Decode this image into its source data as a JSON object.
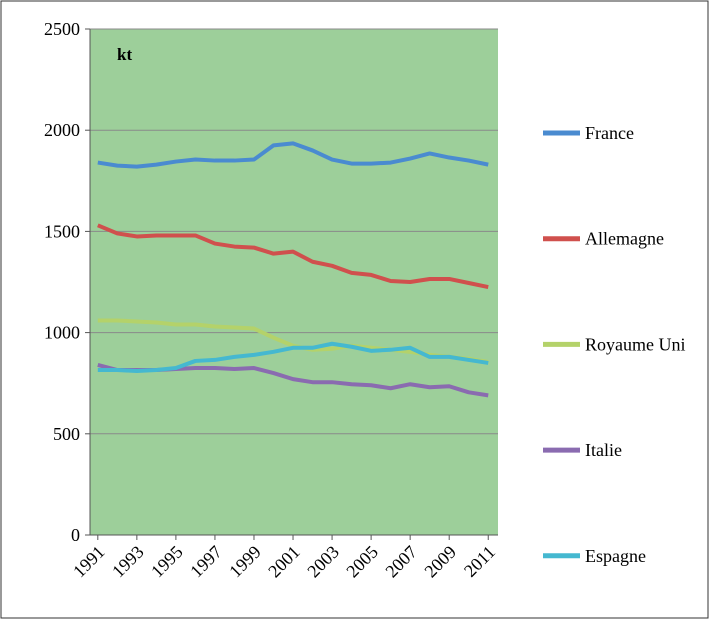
{
  "chart_data": {
    "type": "line",
    "y_unit_label": "kt",
    "x": [
      1991,
      1992,
      1993,
      1994,
      1995,
      1996,
      1997,
      1998,
      1999,
      2000,
      2001,
      2002,
      2003,
      2004,
      2005,
      2006,
      2007,
      2008,
      2009,
      2010,
      2011
    ],
    "xlim": [
      1990.6,
      2011.5
    ],
    "xticks": [
      1991,
      1993,
      1995,
      1997,
      1999,
      2001,
      2003,
      2005,
      2007,
      2009,
      2011
    ],
    "ylim": [
      0,
      2500
    ],
    "yticks": [
      0,
      500,
      1000,
      1500,
      2000,
      2500
    ],
    "grid": true,
    "background": "#9dcf9a",
    "legend": "right",
    "series": [
      {
        "name": "France",
        "color": "#4a8bd0",
        "values": [
          1840,
          1825,
          1820,
          1830,
          1845,
          1855,
          1850,
          1850,
          1855,
          1925,
          1935,
          1900,
          1855,
          1835,
          1835,
          1840,
          1860,
          1885,
          1865,
          1850,
          1830
        ]
      },
      {
        "name": "Allemagne",
        "color": "#d0504d",
        "values": [
          1530,
          1490,
          1475,
          1480,
          1480,
          1480,
          1440,
          1425,
          1420,
          1390,
          1400,
          1350,
          1330,
          1295,
          1285,
          1255,
          1250,
          1265,
          1265,
          1245,
          1225
        ]
      },
      {
        "name": "Royaume Uni",
        "color": "#b4d26a",
        "values": [
          1060,
          1060,
          1055,
          1050,
          1040,
          1040,
          1030,
          1025,
          1020,
          975,
          935,
          915,
          920,
          935,
          925,
          915,
          905,
          890,
          880,
          870,
          855
        ]
      },
      {
        "name": "Italie",
        "color": "#8a6bb0",
        "values": [
          840,
          815,
          815,
          815,
          820,
          825,
          825,
          820,
          825,
          800,
          770,
          755,
          755,
          745,
          740,
          725,
          745,
          730,
          735,
          705,
          690
        ]
      },
      {
        "name": "Espagne",
        "color": "#45b8d0",
        "values": [
          815,
          815,
          810,
          815,
          825,
          860,
          865,
          880,
          890,
          905,
          925,
          925,
          945,
          930,
          910,
          915,
          925,
          880,
          880,
          865,
          850
        ]
      }
    ]
  }
}
